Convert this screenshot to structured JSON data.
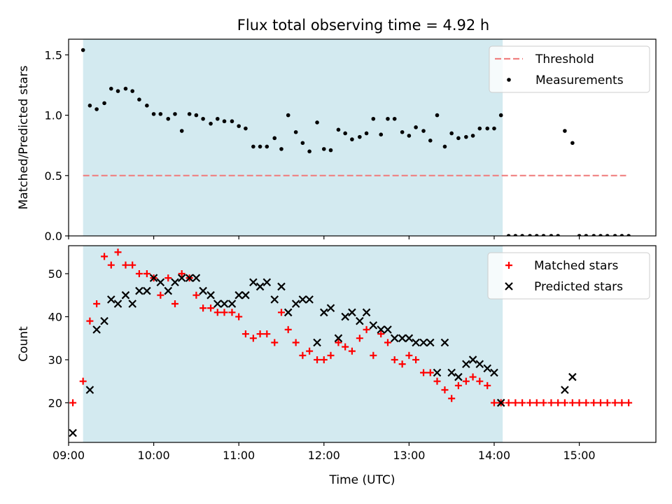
{
  "figure": {
    "title": "Flux total observing time = 4.92 h"
  },
  "chart_data": [
    {
      "type": "scatter",
      "panel": "top",
      "title": "Flux total observing time = 4.92 h",
      "xlabel": "",
      "ylabel": "Matched/Predicted stars",
      "xlim": [
        9.0,
        15.9
      ],
      "ylim": [
        0.0,
        1.63
      ],
      "yticks": [
        0.0,
        0.5,
        1.0,
        1.5
      ],
      "ytick_labels": [
        "0.0",
        "0.5",
        "1.0",
        "1.5"
      ],
      "observing_window": {
        "start": 9.17,
        "end": 14.1,
        "color": "#d3eaf0"
      },
      "legend_position": "top-right",
      "threshold": {
        "name": "Threshold",
        "value": 0.5,
        "x_range": [
          9.17,
          15.55
        ],
        "color": "#f08080"
      },
      "series": [
        {
          "name": "Measurements",
          "color": "#000000",
          "x": [
            9.17,
            9.25,
            9.33,
            9.42,
            9.5,
            9.58,
            9.67,
            9.75,
            9.83,
            9.92,
            10.0,
            10.08,
            10.17,
            10.25,
            10.33,
            10.42,
            10.5,
            10.58,
            10.67,
            10.75,
            10.83,
            10.92,
            11.0,
            11.08,
            11.17,
            11.25,
            11.33,
            11.42,
            11.5,
            11.58,
            11.67,
            11.75,
            11.83,
            11.92,
            12.0,
            12.08,
            12.17,
            12.25,
            12.33,
            12.42,
            12.5,
            12.58,
            12.67,
            12.75,
            12.83,
            12.92,
            13.0,
            13.08,
            13.17,
            13.25,
            13.33,
            13.42,
            13.5,
            13.58,
            13.67,
            13.75,
            13.83,
            13.92,
            14.0,
            14.08,
            14.17,
            14.25,
            14.33,
            14.42,
            14.5,
            14.58,
            14.67,
            14.75,
            14.83,
            14.92,
            15.0,
            15.08,
            15.17,
            15.25,
            15.33,
            15.42,
            15.5,
            15.58
          ],
          "y": [
            1.54,
            1.08,
            1.05,
            1.1,
            1.22,
            1.2,
            1.22,
            1.2,
            1.13,
            1.08,
            1.01,
            1.01,
            0.97,
            1.01,
            0.87,
            1.01,
            1.0,
            0.97,
            0.93,
            0.97,
            0.95,
            0.95,
            0.91,
            0.89,
            0.74,
            0.74,
            0.74,
            0.81,
            0.72,
            1.0,
            0.86,
            0.77,
            0.7,
            0.94,
            0.72,
            0.71,
            0.88,
            0.85,
            0.8,
            0.82,
            0.85,
            0.97,
            0.84,
            0.97,
            0.97,
            0.86,
            0.83,
            0.9,
            0.87,
            0.79,
            1.0,
            0.74,
            0.85,
            0.81,
            0.82,
            0.83,
            0.89,
            0.89,
            0.89,
            1.0,
            0.0,
            0.0,
            0.0,
            0.0,
            0.0,
            0.0,
            0.0,
            0.0,
            0.87,
            0.77,
            0.0,
            0.0,
            0.0,
            0.0,
            0.0,
            0.0,
            0.0,
            0.0
          ]
        }
      ]
    },
    {
      "type": "scatter",
      "panel": "bottom",
      "xlabel": "Time (UTC)",
      "ylabel": "Count",
      "xlim": [
        9.0,
        15.9
      ],
      "ylim": [
        10.8,
        56.5
      ],
      "xticks": [
        9.0,
        10.0,
        11.0,
        12.0,
        13.0,
        14.0,
        15.0
      ],
      "xtick_labels": [
        "09:00",
        "10:00",
        "11:00",
        "12:00",
        "13:00",
        "14:00",
        "15:00"
      ],
      "yticks": [
        20,
        30,
        40,
        50
      ],
      "ytick_labels": [
        "20",
        "30",
        "40",
        "50"
      ],
      "observing_window": {
        "start": 9.17,
        "end": 14.1,
        "color": "#d3eaf0"
      },
      "legend_position": "top-right",
      "series": [
        {
          "name": "Matched stars",
          "color": "#ff0000",
          "marker": "plus",
          "x": [
            9.05,
            9.17,
            9.25,
            9.33,
            9.42,
            9.5,
            9.58,
            9.67,
            9.75,
            9.83,
            9.92,
            10.0,
            10.08,
            10.17,
            10.25,
            10.33,
            10.42,
            10.5,
            10.58,
            10.67,
            10.75,
            10.83,
            10.92,
            11.0,
            11.08,
            11.17,
            11.25,
            11.33,
            11.42,
            11.5,
            11.58,
            11.67,
            11.75,
            11.83,
            11.92,
            12.0,
            12.08,
            12.17,
            12.25,
            12.33,
            12.42,
            12.5,
            12.58,
            12.67,
            12.75,
            12.83,
            12.92,
            13.0,
            13.08,
            13.17,
            13.25,
            13.33,
            13.42,
            13.5,
            13.58,
            13.67,
            13.75,
            13.83,
            13.92,
            14.0,
            14.08,
            14.17,
            14.25,
            14.33,
            14.42,
            14.5,
            14.58,
            14.67,
            14.75,
            14.83,
            14.92,
            15.0,
            15.08,
            15.17,
            15.25,
            15.33,
            15.42,
            15.5,
            15.58
          ],
          "y": [
            20,
            25,
            39,
            43,
            54,
            52,
            55,
            52,
            52,
            50,
            50,
            49,
            45,
            49,
            43,
            50,
            49,
            45,
            42,
            42,
            41,
            41,
            41,
            40,
            36,
            35,
            36,
            36,
            34,
            41,
            37,
            34,
            31,
            32,
            30,
            30,
            31,
            34,
            33,
            32,
            35,
            37,
            31,
            36,
            34,
            30,
            29,
            31,
            30,
            27,
            27,
            25,
            23,
            21,
            24,
            25,
            26,
            25,
            24,
            20,
            20,
            20,
            20,
            20,
            20,
            20,
            20,
            20,
            20,
            20,
            20,
            20,
            20,
            20,
            20,
            20,
            20,
            20,
            20
          ]
        },
        {
          "name": "Predicted stars",
          "color": "#000000",
          "marker": "x",
          "x": [
            9.05,
            9.25,
            9.33,
            9.42,
            9.5,
            9.58,
            9.67,
            9.75,
            9.83,
            9.92,
            10.0,
            10.08,
            10.17,
            10.25,
            10.33,
            10.42,
            10.5,
            10.58,
            10.67,
            10.75,
            10.83,
            10.92,
            11.0,
            11.08,
            11.17,
            11.25,
            11.33,
            11.42,
            11.5,
            11.58,
            11.67,
            11.75,
            11.83,
            11.92,
            12.0,
            12.08,
            12.17,
            12.25,
            12.33,
            12.42,
            12.5,
            12.58,
            12.67,
            12.75,
            12.83,
            12.92,
            13.0,
            13.08,
            13.17,
            13.25,
            13.33,
            13.42,
            13.5,
            13.58,
            13.67,
            13.75,
            13.83,
            13.92,
            14.0,
            14.08,
            14.83,
            14.92
          ],
          "y": [
            13,
            23,
            37,
            39,
            44,
            43,
            45,
            43,
            46,
            46,
            49,
            48,
            46,
            48,
            49,
            49,
            49,
            46,
            45,
            43,
            43,
            43,
            45,
            45,
            48,
            47,
            48,
            44,
            47,
            41,
            43,
            44,
            44,
            34,
            41,
            42,
            35,
            40,
            41,
            39,
            41,
            38,
            37,
            37,
            35,
            35,
            35,
            34,
            34,
            34,
            27,
            34,
            27,
            26,
            29,
            30,
            29,
            28,
            27,
            20,
            23,
            26
          ]
        }
      ]
    }
  ]
}
